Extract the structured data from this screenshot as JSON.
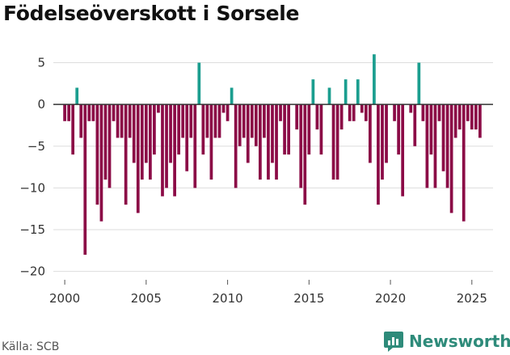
{
  "title": "Födelseöverskott i Sorsele",
  "source": "Källa: SCB",
  "brand": "Newsworthy",
  "colors": {
    "positive": "#1b9e8f",
    "negative": "#8b0a46",
    "brand": "#2e8b7a"
  },
  "chart_data": {
    "type": "bar",
    "title": "Födelseöverskott i Sorsele",
    "xlabel": "",
    "ylabel": "",
    "xlim": [
      1999.3,
      2026.3
    ],
    "ylim": [
      -21,
      6.5
    ],
    "x_ticks": [
      "2000",
      "2005",
      "2010",
      "2015",
      "2020",
      "2025"
    ],
    "y_ticks": [
      "5",
      "0",
      "−5",
      "−10",
      "−15",
      "−20"
    ],
    "y_tick_values": [
      5,
      0,
      -5,
      -10,
      -15,
      -20
    ],
    "x_tick_values": [
      2000,
      2005,
      2010,
      2015,
      2020,
      2025
    ],
    "series": [
      {
        "name": "Födelseöverskott per kvartal",
        "x": [
          2000.0,
          2000.25,
          2000.5,
          2000.75,
          2001.0,
          2001.25,
          2001.5,
          2001.75,
          2002.0,
          2002.25,
          2002.5,
          2002.75,
          2003.0,
          2003.25,
          2003.5,
          2003.75,
          2004.0,
          2004.25,
          2004.5,
          2004.75,
          2005.0,
          2005.25,
          2005.5,
          2005.75,
          2006.0,
          2006.25,
          2006.5,
          2006.75,
          2007.0,
          2007.25,
          2007.5,
          2007.75,
          2008.0,
          2008.25,
          2008.5,
          2008.75,
          2009.0,
          2009.25,
          2009.5,
          2009.75,
          2010.0,
          2010.25,
          2010.5,
          2010.75,
          2011.0,
          2011.25,
          2011.5,
          2011.75,
          2012.0,
          2012.25,
          2012.5,
          2012.75,
          2013.0,
          2013.25,
          2013.5,
          2013.75,
          2014.0,
          2014.25,
          2014.5,
          2014.75,
          2015.0,
          2015.25,
          2015.5,
          2015.75,
          2016.0,
          2016.25,
          2016.5,
          2016.75,
          2017.0,
          2017.25,
          2017.5,
          2017.75,
          2018.0,
          2018.25,
          2018.5,
          2018.75,
          2019.0,
          2019.25,
          2019.5,
          2019.75,
          2020.0,
          2020.25,
          2020.5,
          2020.75,
          2021.0,
          2021.25,
          2021.5,
          2021.75,
          2022.0,
          2022.25,
          2022.5,
          2022.75,
          2023.0,
          2023.25,
          2023.5,
          2023.75,
          2024.0,
          2024.25,
          2024.5,
          2024.75,
          2025.0,
          2025.25,
          2025.5,
          2025.75
        ],
        "values": [
          -2,
          -2,
          -6,
          2,
          -4,
          -18,
          -2,
          -2,
          -12,
          -14,
          -9,
          -10,
          -2,
          -4,
          -4,
          -12,
          -4,
          -7,
          -13,
          -9,
          -7,
          -9,
          -6,
          -1,
          -11,
          -10,
          -7,
          -11,
          -6,
          -4,
          -8,
          -4,
          -10,
          5,
          -6,
          -4,
          -9,
          -4,
          -4,
          -1,
          -2,
          2,
          -10,
          -5,
          -4,
          -7,
          -4,
          -5,
          -9,
          -4,
          -9,
          -7,
          -9,
          -2,
          -6,
          -6,
          0,
          -3,
          -10,
          -12,
          -6,
          3,
          -3,
          -6,
          0,
          2,
          -9,
          -9,
          -3,
          3,
          -2,
          -2,
          3,
          -1,
          -2,
          -7,
          6,
          -12,
          -9,
          -7,
          0,
          -2,
          -6,
          -11,
          0,
          -1,
          -5,
          5,
          -2,
          -10,
          -6,
          -10,
          -2,
          -8,
          -10,
          -13,
          -4,
          -3,
          -14,
          -2,
          -3,
          -3,
          -4,
          0
        ]
      }
    ]
  }
}
